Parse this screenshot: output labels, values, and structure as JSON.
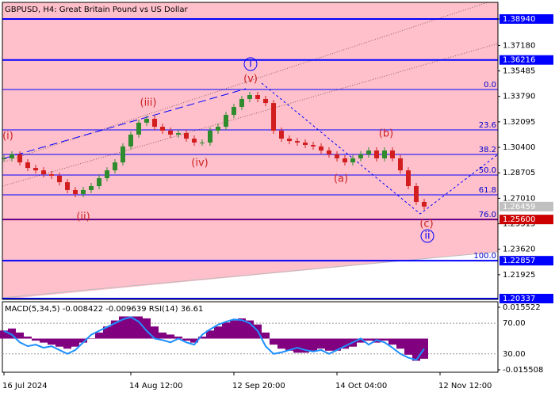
{
  "chart_data": {
    "type": "candlestick",
    "title": "GBPUSD, H4:  Great Britain Pound vs US Dollar",
    "categories": [
      "16 Jul 2024",
      null,
      null,
      null,
      null,
      null,
      null,
      null,
      null,
      null,
      null,
      null,
      null,
      null,
      null,
      null,
      "14 Aug 12:00",
      null,
      null,
      null,
      null,
      null,
      null,
      null,
      null,
      null,
      null,
      null,
      null,
      "12 Sep 20:00",
      null,
      null,
      null,
      null,
      null,
      null,
      null,
      null,
      null,
      null,
      null,
      null,
      "14 Oct 04:00",
      null,
      null,
      null,
      null,
      null,
      null,
      null,
      null,
      null,
      null,
      null,
      null,
      "12 Nov 12:00"
    ],
    "values": [
      1.2967,
      1.2993,
      1.294,
      1.2903,
      1.2887,
      1.2861,
      1.2851,
      1.2808,
      1.2756,
      1.2729,
      1.2756,
      1.2782,
      1.2835,
      1.2887,
      1.294,
      1.3046,
      1.3125,
      1.3204,
      1.323,
      1.3177,
      1.3151,
      1.3125,
      1.3135,
      1.3098,
      1.3072,
      1.3072,
      1.3151,
      1.3177,
      1.3256,
      1.3309,
      1.3362,
      1.3388,
      1.3362,
      1.3335,
      1.3151,
      1.3098,
      1.3082,
      1.3072,
      1.3056,
      1.3046,
      1.3019,
      1.2993,
      1.2967,
      1.294,
      1.2967,
      1.2993,
      1.3019,
      1.2967,
      1.3019,
      1.2967,
      1.2887,
      1.2782,
      1.2677,
      1.2646,
      null,
      null
    ],
    "up_color": "#2e8b2e",
    "down_color": "#d21e1e",
    "ylim": [
      1.20284,
      1.40047
    ],
    "yticks": [
      {
        "value": 1.3894,
        "label": "1.38940"
      },
      {
        "value": 1.3718,
        "label": "1.37180"
      },
      {
        "value": 1.35485,
        "label": "1.35485"
      },
      {
        "value": 1.3379,
        "label": "1.33790"
      },
      {
        "value": 1.32095,
        "label": "1.32095"
      },
      {
        "value": 1.304,
        "label": "1.30400"
      },
      {
        "value": 1.28705,
        "label": "1.28705"
      },
      {
        "value": 1.2701,
        "label": "1.27010"
      },
      {
        "value": 1.25315,
        "label": "1.25315"
      },
      {
        "value": 1.2362,
        "label": "1.23620"
      },
      {
        "value": 1.21925,
        "label": "1.21925"
      }
    ],
    "levels": [
      {
        "value": 1.3894,
        "label": "1.38940",
        "color": "#0000ff"
      },
      {
        "value": 1.36216,
        "label": "1.36216",
        "color": "#0000ff"
      },
      {
        "value": 1.26459,
        "label": "1.26459",
        "color": "#c0c0c0"
      },
      {
        "value": 1.256,
        "label": "1.25600",
        "color": "#cc0000"
      },
      {
        "value": 1.22857,
        "label": "1.22857",
        "color": "#0000ff"
      },
      {
        "value": 1.20337,
        "label": "1.20337",
        "color": "#0000ff"
      }
    ],
    "fib_levels": [
      {
        "label": "0.0",
        "value": 1.3425
      },
      {
        "label": "23.6",
        "value": 1.31562
      },
      {
        "label": "38.2",
        "value": 1.29928
      },
      {
        "label": "50.0",
        "value": 1.28558
      },
      {
        "label": "61.8",
        "value": 1.2724
      },
      {
        "label": "76.0",
        "value": 1.256
      },
      {
        "label": "100.0",
        "value": 1.22857
      }
    ],
    "waves": [
      {
        "label": "(i)",
        "x": 0.5,
        "value": 1.3114,
        "circled": false
      },
      {
        "label": "(ii)",
        "x": 10,
        "value": 1.2577,
        "circled": false
      },
      {
        "label": "(iii)",
        "x": 18.2,
        "value": 1.3335,
        "circled": false
      },
      {
        "label": "(iv)",
        "x": 24.7,
        "value": 1.2935,
        "circled": false
      },
      {
        "label": "(v)",
        "x": 31.1,
        "value": 1.3494,
        "circled": false
      },
      {
        "label": "i",
        "x": 31.1,
        "value": 1.3594,
        "circled": true
      },
      {
        "label": "(a)",
        "x": 42.5,
        "value": 1.2829,
        "circled": false
      },
      {
        "label": "(b)",
        "x": 48.2,
        "value": 1.313,
        "circled": false
      },
      {
        "label": "(c)",
        "x": 53.3,
        "value": 1.2529,
        "circled": false
      },
      {
        "label": "ii",
        "x": 53.4,
        "value": 1.245,
        "circled": true
      }
    ],
    "indicator": {
      "label": "MACD(5,34,5) -0.008422 -0.009639 RSI(14) 36.61",
      "ylim": [
        6,
        98
      ],
      "yticks": [
        {
          "value": 70,
          "label": "70.00"
        },
        {
          "value": 30,
          "label": "30.00"
        }
      ],
      "y2lim": [
        -0.01669,
        0.01827
      ],
      "y2ticks": [
        {
          "value": 0.015522,
          "label": "0.015522"
        },
        {
          "value": -0.015508,
          "label": "-0.015508"
        }
      ],
      "series": [
        {
          "name": "MACD",
          "color": "#800080",
          "axis": "y2",
          "values": [
            0.004,
            0.005,
            0.003,
            0.001,
            -0.001,
            -0.002,
            -0.003,
            -0.004,
            -0.005,
            -0.004,
            -0.002,
            0.0,
            0.003,
            0.006,
            0.009,
            0.011,
            0.011,
            0.011,
            0.01,
            0.006,
            0.003,
            0.002,
            0.001,
            -0.001,
            -0.002,
            0.001,
            0.004,
            0.006,
            0.008,
            0.009,
            0.01,
            0.009,
            0.007,
            0.003,
            -0.003,
            -0.005,
            -0.006,
            -0.007,
            -0.007,
            -0.006,
            -0.005,
            -0.006,
            -0.006,
            -0.005,
            -0.004,
            -0.002,
            -0.001,
            -0.002,
            -0.001,
            -0.003,
            -0.005,
            -0.008,
            -0.011,
            -0.01,
            null,
            null
          ]
        },
        {
          "name": "RSI",
          "color": "#1e90ff",
          "values": [
            60,
            55,
            45,
            40,
            42,
            38,
            40,
            35,
            30,
            35,
            45,
            55,
            60,
            65,
            70,
            75,
            78,
            72,
            60,
            50,
            48,
            45,
            50,
            45,
            42,
            55,
            62,
            68,
            72,
            75,
            74,
            70,
            60,
            40,
            30,
            32,
            35,
            38,
            35,
            33,
            35,
            30,
            35,
            40,
            45,
            50,
            42,
            48,
            45,
            38,
            30,
            25,
            22,
            36.61,
            null,
            null
          ]
        }
      ]
    }
  }
}
